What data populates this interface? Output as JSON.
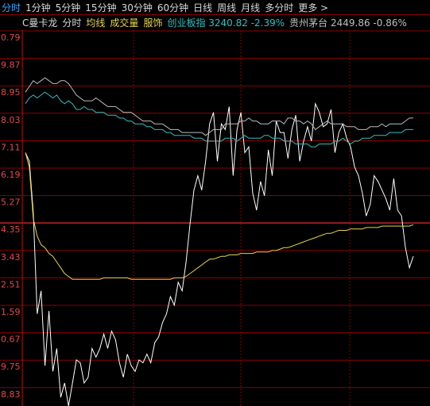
{
  "tabs": [
    "分时",
    "1分钟",
    "5分钟",
    "15分钟",
    "30分钟",
    "60分钟",
    "日线",
    "周线",
    "月线",
    "多分时",
    "更多 >"
  ],
  "info": {
    "stock": "C曼卡龙",
    "mode": "分时",
    "avg": "均线",
    "vol": "成交量",
    "sector": "服饰",
    "index1": "创业板指 3240.82 -2.39%",
    "index2": "贵州茅台 2449.86 -0.86%"
  },
  "colors": {
    "price": "#ffffff",
    "avg": "#e8d44d",
    "index1": "#30c0c0",
    "index2": "#bdbdbd",
    "grid": "#8b0000",
    "label": "#e24a4a",
    "tab_active": "#34a8ff"
  },
  "y_labels": [
    "0.79",
    "9.87",
    "8.95",
    "8.03",
    "7.11",
    "6.19",
    "5.27",
    "4.35",
    "3.43",
    "2.51",
    "1.59",
    "0.67",
    "9.75",
    "8.83"
  ],
  "chart_data": {
    "type": "line",
    "y_range": [
      0,
      13
    ],
    "series": [
      {
        "name": "price",
        "values": [
          8.8,
          8.5,
          6.7,
          3.2,
          4.0,
          1.4,
          3.3,
          1.2,
          2.0,
          0.3,
          0.8,
          0,
          0.8,
          1.6,
          1.5,
          0.8,
          1.0,
          2.0,
          1.7,
          2.0,
          2.5,
          2.0,
          2.6,
          2.3,
          1.5,
          1.0,
          1.8,
          1.4,
          1.2,
          1.6,
          1.5,
          1.8,
          1.5,
          2.2,
          2.4,
          2.9,
          3.2,
          3.8,
          3.5,
          4.3,
          4.0,
          5.0,
          6.3,
          7.5,
          8.0,
          7.5,
          8.5,
          9.8,
          10.2,
          8.5,
          9.8,
          9.6,
          10.4,
          8.0,
          9.6,
          10.2,
          8.8,
          9.0,
          7.4,
          6.8,
          7.8,
          7.3,
          8.9,
          8.0,
          9.9,
          9.5,
          9.5,
          8.6,
          9.6,
          10.1,
          8.5,
          9.2,
          9.7,
          9.2,
          10.5,
          10.2,
          9.7,
          9.8,
          10.3,
          8.8,
          9.5,
          9.8,
          9.3,
          9.0,
          8.3,
          8.0,
          7.4,
          6.6,
          7.0,
          8.0,
          7.8,
          7.5,
          7.2,
          6.8,
          7.9,
          6.8,
          6.6,
          5.5,
          4.8,
          5.2
        ]
      },
      {
        "name": "avg",
        "values": [
          8.8,
          8.3,
          6.5,
          5.9,
          5.6,
          5.5,
          5.3,
          5.2,
          5.0,
          4.8,
          4.6,
          4.5,
          4.4,
          4.4,
          4.4,
          4.4,
          4.4,
          4.4,
          4.4,
          4.4,
          4.45,
          4.45,
          4.45,
          4.45,
          4.45,
          4.45,
          4.45,
          4.4,
          4.4,
          4.4,
          4.4,
          4.4,
          4.4,
          4.4,
          4.4,
          4.4,
          4.4,
          4.4,
          4.45,
          4.45,
          4.45,
          4.5,
          4.6,
          4.7,
          4.8,
          4.9,
          5.0,
          5.1,
          5.1,
          5.15,
          5.2,
          5.2,
          5.25,
          5.25,
          5.25,
          5.3,
          5.3,
          5.3,
          5.3,
          5.35,
          5.35,
          5.35,
          5.35,
          5.4,
          5.4,
          5.45,
          5.5,
          5.5,
          5.55,
          5.6,
          5.65,
          5.7,
          5.75,
          5.8,
          5.85,
          5.9,
          5.95,
          6.0,
          6.0,
          6.05,
          6.1,
          6.1,
          6.1,
          6.15,
          6.15,
          6.15,
          6.15,
          6.2,
          6.2,
          6.2,
          6.2,
          6.25,
          6.25,
          6.25,
          6.25,
          6.25,
          6.25,
          6.25,
          6.25,
          6.3
        ]
      },
      {
        "name": "index1",
        "values": [
          10.5,
          10.7,
          10.8,
          10.7,
          10.8,
          10.9,
          10.8,
          10.7,
          10.8,
          10.6,
          10.5,
          10.6,
          10.5,
          10.3,
          10.3,
          10.4,
          10.3,
          10.3,
          10.2,
          10.2,
          10.2,
          10.1,
          10.1,
          10.1,
          10.0,
          10.0,
          9.9,
          9.9,
          9.8,
          9.8,
          9.8,
          9.7,
          9.7,
          9.6,
          9.6,
          9.6,
          9.5,
          9.5,
          9.4,
          9.4,
          9.4,
          9.4,
          9.4,
          9.3,
          9.3,
          9.3,
          9.2,
          9.2,
          9.2,
          9.2,
          9.2,
          9.3,
          9.3,
          9.3,
          9.2,
          9.3,
          9.4,
          9.3,
          9.3,
          9.3,
          9.3,
          9.4,
          9.4,
          9.3,
          9.3,
          9.3,
          9.2,
          9.2,
          9.2,
          9.1,
          9.1,
          9.1,
          9.1,
          9.0,
          9.0,
          9.1,
          9.1,
          9.1,
          9.1,
          9.2,
          9.2,
          9.3,
          9.2,
          9.1,
          9.2,
          9.2,
          9.3,
          9.3,
          9.3,
          9.4,
          9.4,
          9.4,
          9.4,
          9.5,
          9.5,
          9.5,
          9.5,
          9.6,
          9.6,
          9.6
        ]
      },
      {
        "name": "index2",
        "values": [
          10.9,
          11.1,
          11.3,
          11.2,
          11.3,
          11.4,
          11.3,
          11.2,
          11.2,
          11.3,
          11.3,
          11.2,
          11.0,
          10.8,
          10.7,
          10.6,
          10.6,
          10.6,
          10.7,
          10.6,
          10.5,
          10.4,
          10.4,
          10.4,
          10.3,
          10.2,
          10.2,
          10.2,
          10.1,
          10.0,
          9.9,
          9.9,
          9.9,
          9.8,
          9.8,
          9.8,
          9.7,
          9.6,
          9.6,
          9.6,
          9.5,
          9.5,
          9.5,
          9.5,
          9.5,
          9.5,
          9.4,
          9.5,
          9.6,
          9.6,
          9.6,
          9.8,
          9.8,
          9.8,
          9.8,
          9.9,
          9.9,
          10.0,
          9.9,
          9.9,
          9.8,
          9.8,
          9.8,
          9.9,
          9.9,
          9.9,
          9.8,
          10.0,
          10.0,
          9.9,
          9.9,
          9.8,
          9.9,
          9.8,
          9.6,
          9.7,
          9.8,
          9.9,
          9.8,
          9.8,
          9.8,
          9.8,
          9.7,
          9.7,
          9.7,
          9.6,
          9.6,
          9.6,
          9.7,
          9.7,
          9.7,
          9.8,
          9.7,
          9.8,
          9.8,
          9.8,
          9.8,
          9.9,
          10.0,
          10.0
        ]
      }
    ]
  }
}
